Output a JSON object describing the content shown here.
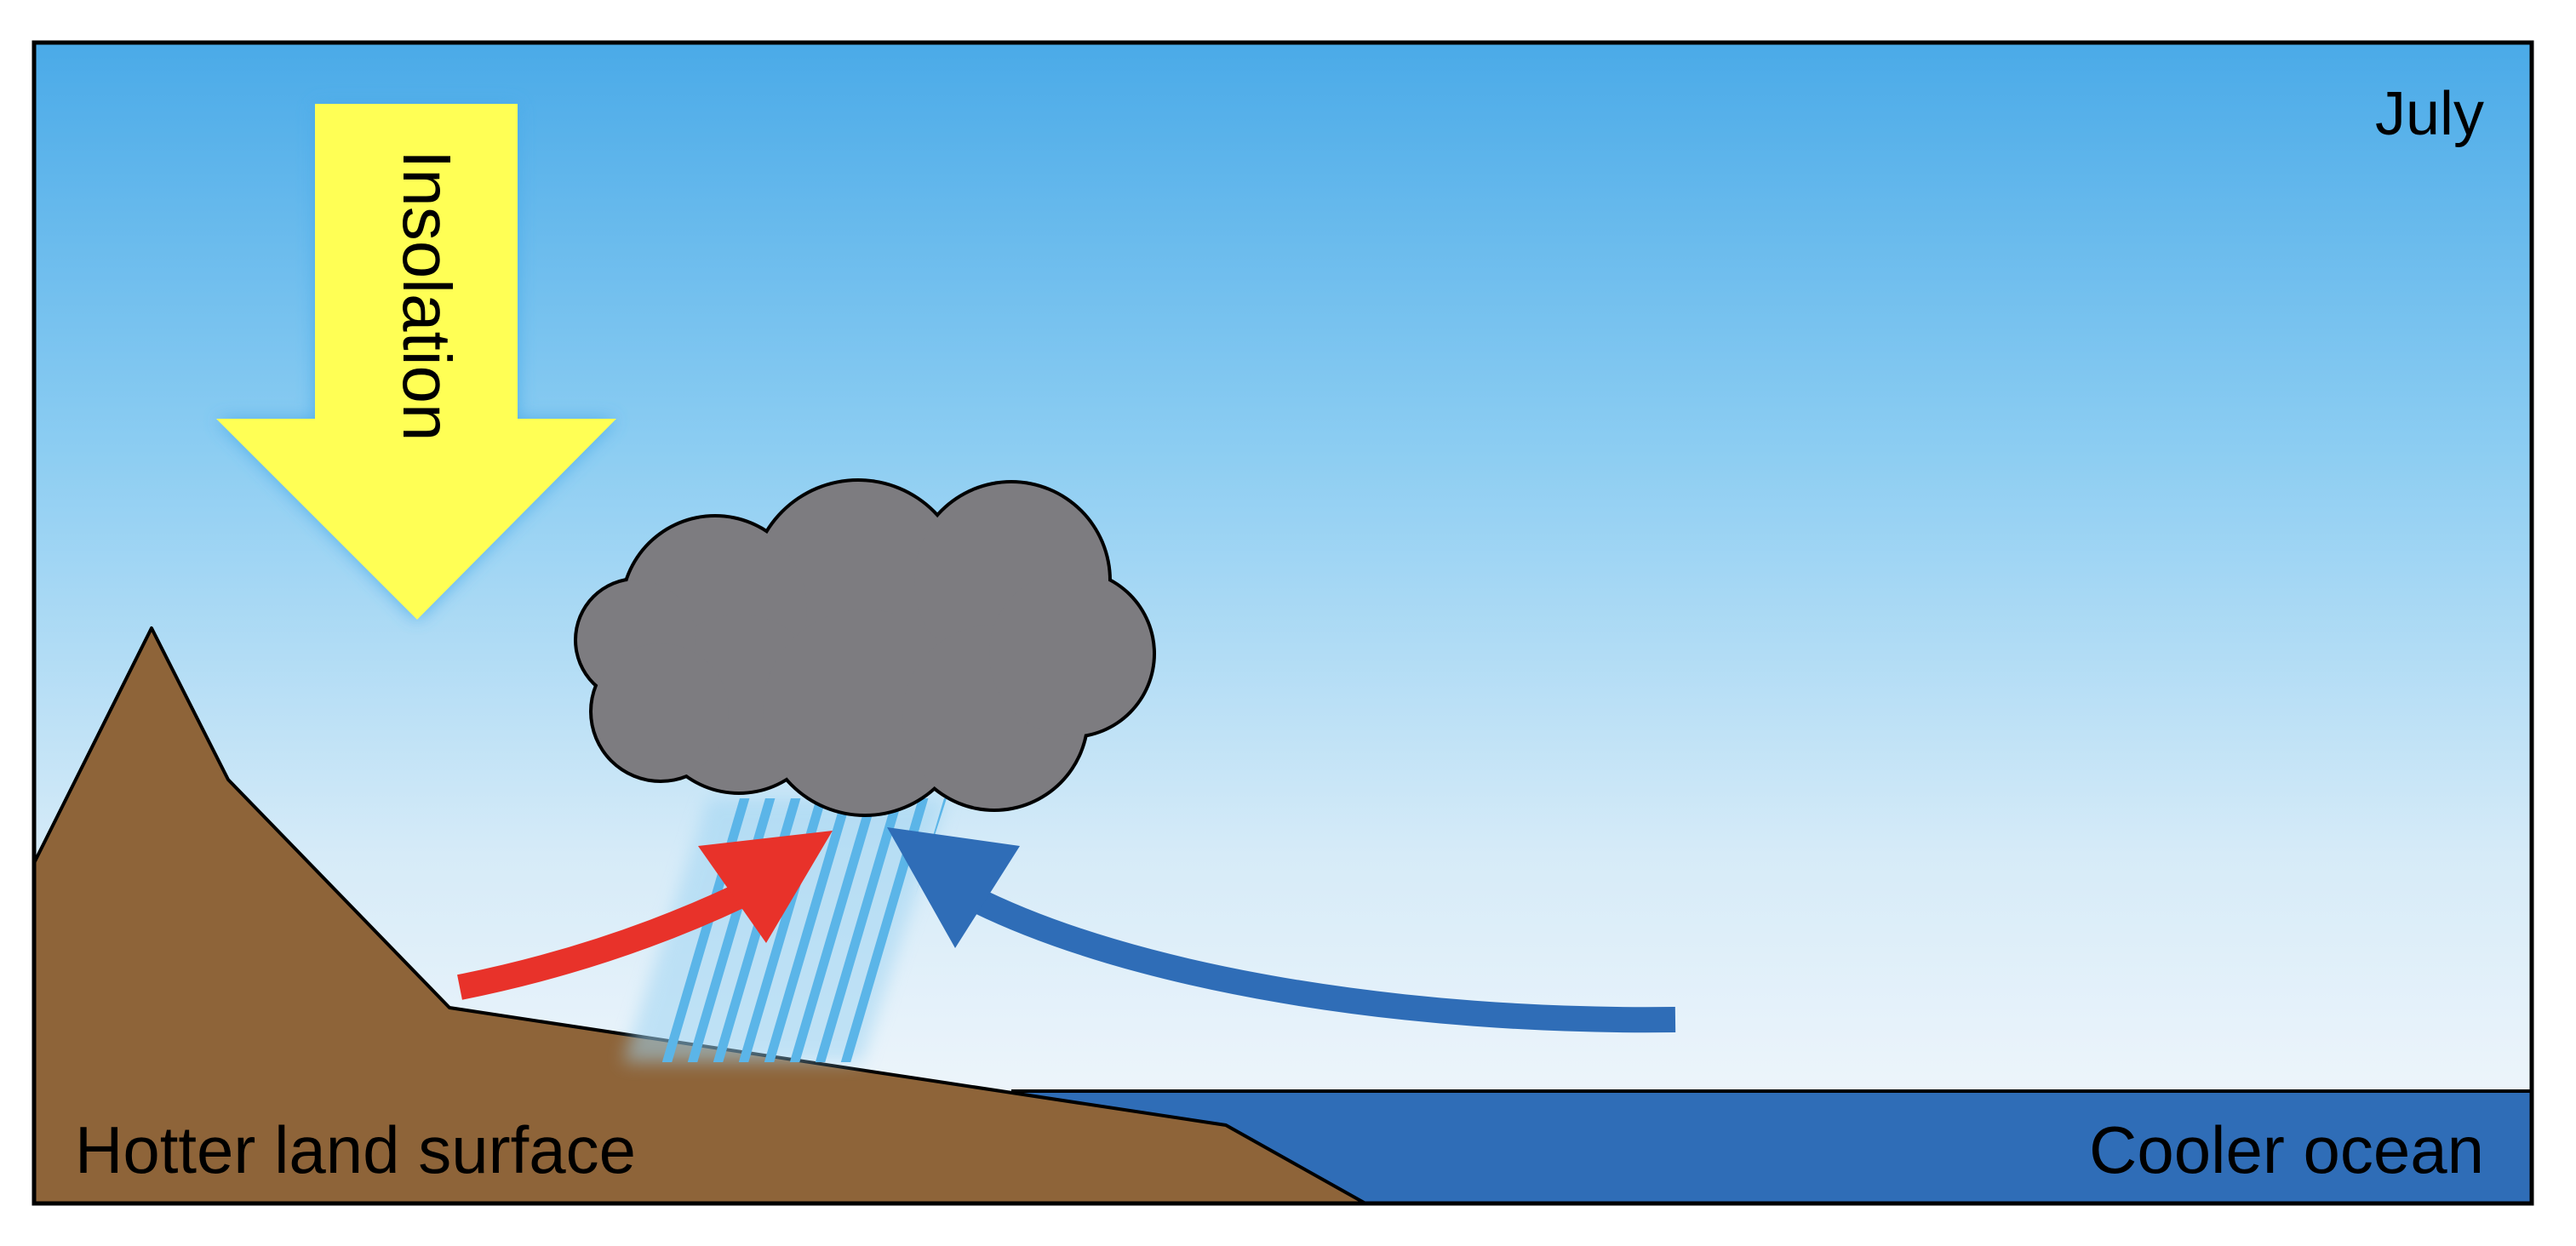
{
  "month": "July",
  "insolation_label": "Insolation",
  "land_label": "Hotter land surface",
  "ocean_label": "Cooler ocean",
  "icons": [
    "insolation-arrow-icon",
    "rain-cloud-icon",
    "warm-air-arrow-icon",
    "cool-air-arrow-icon"
  ],
  "colors": {
    "sky_top": "#4aaae8",
    "sky_bottom": "#f7f9fc",
    "land": "#8e6439",
    "ocean": "#2f6db7",
    "insolation_arrow": "#ffff55",
    "cloud": "#7d7c80",
    "rain": "#5bb5e8",
    "warm_air_arrow": "#e8322a",
    "cool_air_arrow": "#2f6db7"
  }
}
